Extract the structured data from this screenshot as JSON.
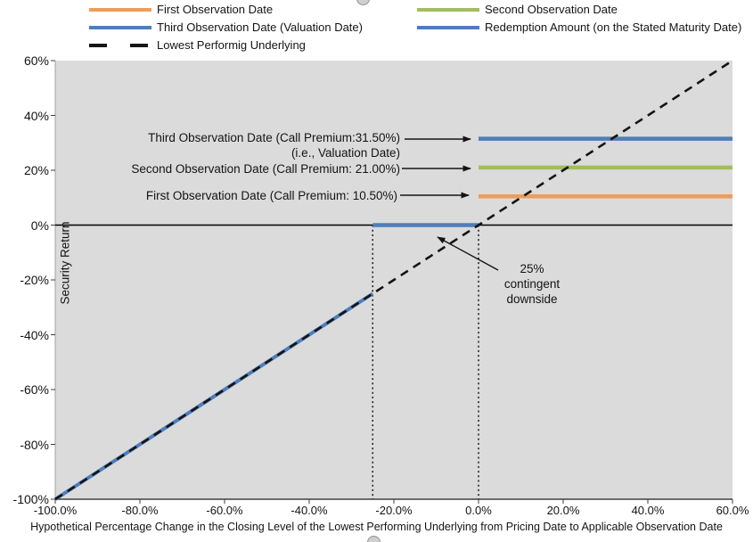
{
  "colors": {
    "orange": "#ED9D58",
    "green": "#A3BC5E",
    "blue": "#4E7DBB",
    "dashed_black": "#141414",
    "plot_bg": "#DBDBDB",
    "axis_dark": "#3F3F3F",
    "axis_gray": "#A0A0A0",
    "zero_line": "#000000"
  },
  "legend": {
    "items": [
      {
        "label": "First Observation Date",
        "color": "#ED9D58",
        "style": "solid",
        "col": 0,
        "row": 0
      },
      {
        "label": "Second Observation Date",
        "color": "#A3BC5E",
        "style": "solid",
        "col": 1,
        "row": 0
      },
      {
        "label": "Third Observation Date (Valuation Date)",
        "color": "#4E7DBB",
        "style": "solid",
        "col": 0,
        "row": 1
      },
      {
        "label": "Redemption Amount (on the Stated Maturity Date)",
        "color": "#4E7DBB",
        "style": "solid",
        "col": 1,
        "row": 1
      },
      {
        "label": "Lowest Performig Underlying",
        "color": "#141414",
        "style": "dashed",
        "col": 0,
        "row": 2
      }
    ]
  },
  "chart_data": {
    "type": "line",
    "title": "",
    "xlabel": "Hypothetical Percentage Change in the Closing Level of the Lowest Performing Underlying from Pricing Date to Applicable Observation Date",
    "ylabel": "Security Return",
    "xlim": [
      -100,
      60
    ],
    "ylim": [
      -100,
      60
    ],
    "grid": false,
    "legend_position": "top",
    "x_ticks": [
      {
        "v": -100,
        "label": "-100.0%"
      },
      {
        "v": -80,
        "label": "-80.0%"
      },
      {
        "v": -60,
        "label": "-60.0%"
      },
      {
        "v": -40,
        "label": "-40.0%"
      },
      {
        "v": -20,
        "label": "-20.0%"
      },
      {
        "v": 0,
        "label": "0.0%"
      },
      {
        "v": 20,
        "label": "20.0%"
      },
      {
        "v": 40,
        "label": "40.0%"
      },
      {
        "v": 60,
        "label": "60.0%"
      }
    ],
    "y_ticks": [
      {
        "v": 60,
        "label": "60%"
      },
      {
        "v": 40,
        "label": "40%"
      },
      {
        "v": 20,
        "label": "20%"
      },
      {
        "v": 0,
        "label": "0%"
      },
      {
        "v": -20,
        "label": "-20%"
      },
      {
        "v": -40,
        "label": "-40%"
      },
      {
        "v": -60,
        "label": "-60%"
      },
      {
        "v": -80,
        "label": "-80%"
      },
      {
        "v": -100,
        "label": "-100%"
      }
    ],
    "series": [
      {
        "name": "First Observation Date",
        "color": "#ED9D58",
        "style": "solid",
        "points": [
          [
            0,
            10.5
          ],
          [
            60,
            10.5
          ]
        ]
      },
      {
        "name": "Second Observation Date",
        "color": "#A3BC5E",
        "style": "solid",
        "points": [
          [
            0,
            21
          ],
          [
            60,
            21
          ]
        ]
      },
      {
        "name": "Third Observation Date (Valuation Date)",
        "color": "#4E7DBB",
        "style": "solid",
        "points": [
          [
            0,
            31.5
          ],
          [
            60,
            31.5
          ]
        ]
      },
      {
        "name": "Redemption Amount (on the Stated Maturity Date)",
        "color": "#4E7DBB",
        "style": "solid",
        "segments": [
          [
            [
              -100,
              -100
            ],
            [
              -25,
              -25
            ]
          ],
          [
            [
              -25,
              0
            ],
            [
              0,
              0
            ]
          ]
        ]
      },
      {
        "name": "Lowest Performig Underlying",
        "color": "#141414",
        "style": "dashed",
        "points": [
          [
            -100,
            -100
          ],
          [
            60,
            60
          ]
        ]
      }
    ],
    "reference_lines": {
      "zero_line_y": 0,
      "vertical_dotted_x": [
        -25,
        0
      ]
    },
    "call_premiums": {
      "first": "10.50%",
      "second": "21.00%",
      "third": "31.50%"
    },
    "contingent_downside": "25%"
  },
  "annotations": [
    {
      "id": "third-observation-callout",
      "lines": [
        "Third Observation Date (Call Premium:31.50%)",
        "(i.e., Valuation Date)"
      ]
    },
    {
      "id": "second-observation-callout",
      "lines": [
        "Second Observation Date (Call Premium: 21.00%)"
      ]
    },
    {
      "id": "first-observation-callout",
      "lines": [
        "First Observation Date (Call Premium: 10.50%)"
      ]
    },
    {
      "id": "contingent-downside-callout",
      "lines": [
        "25%",
        "contingent",
        "downside"
      ]
    }
  ]
}
